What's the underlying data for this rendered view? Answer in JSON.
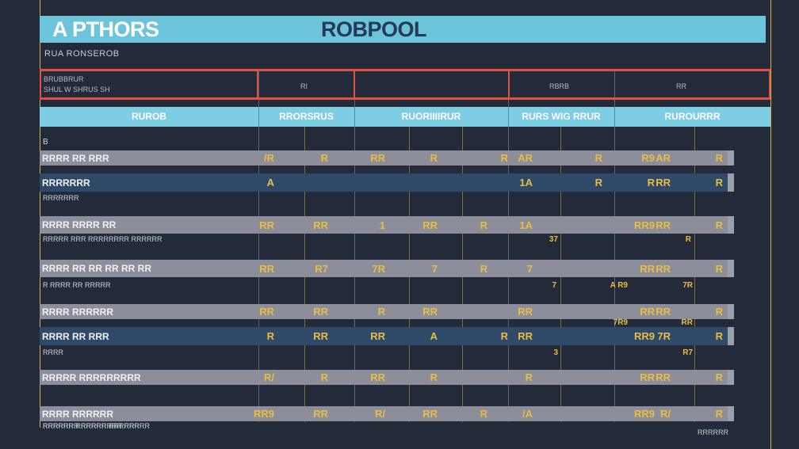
{
  "title": {
    "left": "A PTHORS",
    "center": "ROBPOOL"
  },
  "subtitle": "RUA RONSEROB",
  "info": {
    "line1": "BRUBBRUR",
    "line2": "SHUL W SHRUS SH",
    "col2": "RI",
    "col4": "RBRB",
    "col5": "RR"
  },
  "columns": [
    "RUROB",
    "RRORSRUS",
    "RUORIIIIRUR",
    "RURS WIG RRUR",
    "RUROURRR"
  ],
  "marker_top": "B",
  "rows": [
    {
      "label": "RRRR RR RRR",
      "sublabel": "",
      "style": "gray",
      "values": [
        "/R",
        "R",
        "RR",
        "R",
        "",
        "R",
        "AR",
        "R",
        "R9",
        "AR",
        "R"
      ]
    },
    {
      "label": "RRRRRRR",
      "sublabel": "RRRRRRR",
      "style": "blue",
      "values": [
        "A",
        "",
        "",
        "",
        "",
        "",
        "1A",
        "R",
        "R",
        "RR",
        "R"
      ]
    },
    {
      "label": "RRRR RRRR RR",
      "sublabel": "RRRRR RRR RRRRRRRR RRRRRR",
      "style": "gray",
      "values": [
        "RR",
        "RR",
        "1",
        "RR",
        "R",
        "",
        "1A",
        "",
        "RR9",
        "RR",
        "R"
      ]
    },
    {
      "label": "RRRR RR RR RR RR RR",
      "sublabel": "R RRRR RR RRRRR",
      "style": "gray",
      "values": [
        "RR",
        "R7",
        "7R",
        "7",
        "R",
        "",
        "7",
        "",
        "RR",
        "RR",
        "R"
      ]
    },
    {
      "label": "RRRR RRRRRR",
      "sublabel": "",
      "style": "gray",
      "values": [
        "RR",
        "RR",
        "R",
        "RR",
        "",
        "",
        "RR",
        "",
        "RR",
        "RR",
        "R"
      ]
    },
    {
      "label": "RRRR RR RRR",
      "sublabel": "RRRR",
      "style": "blue",
      "values": [
        "R",
        "RR",
        "RR",
        "A",
        "",
        "R",
        "RR",
        "",
        "RR9",
        "7R",
        "R"
      ]
    },
    {
      "label": "RRRRR RRRRRRRRR",
      "sublabel": "",
      "style": "gray",
      "values": [
        "R/",
        "R",
        "RR",
        "R",
        "",
        "",
        "R",
        "",
        "RR",
        "RR",
        "R"
      ]
    },
    {
      "label": "RRRR RRRRRR",
      "sublabel": "RRRRRR RRRRRR RRRRRR",
      "style": "gray",
      "values": [
        "RR9",
        "RR",
        "R/",
        "RR",
        "R",
        "",
        "/A",
        "",
        "RR9",
        "R/",
        "R"
      ]
    }
  ],
  "extras": {
    "r3_sub": [
      "37",
      "",
      "R"
    ],
    "r4_sub": [
      "7",
      "A R9",
      "7R"
    ],
    "r6_sub": [
      "3",
      "",
      "R7"
    ],
    "r5_extra": [
      "R",
      "7R9",
      "RR"
    ]
  },
  "footer_left": "RRRRRRR RRRRRRRR RRRRR",
  "footer_right": "RRRRRR"
}
